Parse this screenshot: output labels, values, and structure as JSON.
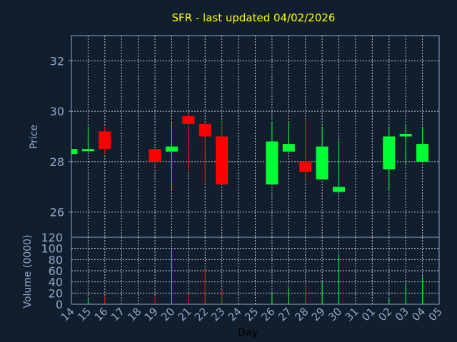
{
  "chart_data": {
    "type": "candlestick",
    "title": "SFR - last updated 04/02/2026",
    "xlabel": "Day",
    "price_panel": {
      "ylabel": "Price",
      "ylim": [
        25,
        33
      ],
      "yticks": [
        26,
        28,
        30,
        32
      ],
      "grid": true
    },
    "volume_panel": {
      "ylabel": "Volume (0000)",
      "ylim": [
        0,
        120
      ],
      "yticks": [
        0,
        20,
        40,
        60,
        80,
        100,
        120
      ],
      "grid": true
    },
    "x_labels": [
      "14",
      "15",
      "16",
      "17",
      "18",
      "19",
      "20",
      "21",
      "22",
      "23",
      "24",
      "25",
      "26",
      "27",
      "28",
      "29",
      "30",
      "31",
      "01",
      "02",
      "03",
      "04",
      "05"
    ],
    "up_color": "#00ff33",
    "down_color": "#ff0000",
    "background": "#111e2e",
    "grid_color": "#ffffff",
    "title_color": "#ffff00",
    "axis_text_color": "#8fa8c8",
    "candles": [
      {
        "day": "14",
        "open": 28.3,
        "high": 28.5,
        "low": 28.3,
        "close": 28.5,
        "volume": 0
      },
      {
        "day": "15",
        "open": 28.5,
        "high": 29.4,
        "low": 28.4,
        "close": 28.5,
        "volume": 10
      },
      {
        "day": "16",
        "open": 29.2,
        "high": 29.4,
        "low": 28.3,
        "close": 28.5,
        "volume": 14
      },
      {
        "day": "19",
        "open": 28.5,
        "high": 28.5,
        "low": 28.0,
        "close": 28.0,
        "volume": 14
      },
      {
        "day": "20",
        "open": 28.4,
        "high": 29.6,
        "low": 26.9,
        "close": 28.6,
        "volume": 100
      },
      {
        "day": "21",
        "open": 29.8,
        "high": 29.8,
        "low": 27.6,
        "close": 29.5,
        "volume": 20
      },
      {
        "day": "22",
        "open": 29.5,
        "high": 29.5,
        "low": 27.1,
        "close": 29.0,
        "volume": 62
      },
      {
        "day": "23",
        "open": 29.0,
        "high": 29.6,
        "low": 27.1,
        "close": 27.1,
        "volume": 25
      },
      {
        "day": "26",
        "open": 27.1,
        "high": 29.6,
        "low": 27.1,
        "close": 28.8,
        "volume": 20
      },
      {
        "day": "27",
        "open": 28.4,
        "high": 29.6,
        "low": 28.4,
        "close": 28.7,
        "volume": 30
      },
      {
        "day": "28",
        "open": 28.0,
        "high": 29.7,
        "low": 27.2,
        "close": 27.6,
        "volume": 32
      },
      {
        "day": "29",
        "open": 27.3,
        "high": 29.4,
        "low": 27.3,
        "close": 28.6,
        "volume": 40
      },
      {
        "day": "30",
        "open": 26.8,
        "high": 28.9,
        "low": 26.8,
        "close": 27.0,
        "volume": 88
      },
      {
        "day": "02",
        "open": 27.7,
        "high": 29.4,
        "low": 26.9,
        "close": 29.0,
        "volume": 10
      },
      {
        "day": "03",
        "open": 29.0,
        "high": 29.5,
        "low": 27.9,
        "close": 29.1,
        "volume": 36
      },
      {
        "day": "04",
        "open": 28.0,
        "high": 29.4,
        "low": 28.0,
        "close": 28.7,
        "volume": 50
      }
    ]
  }
}
